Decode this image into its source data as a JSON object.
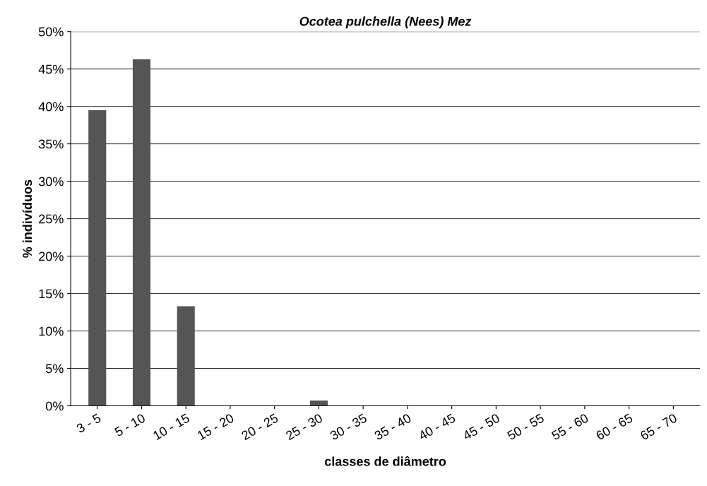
{
  "chart_data": {
    "type": "bar",
    "title": "Ocotea pulchella (Nees) Mez",
    "xlabel": "classes de diâmetro",
    "ylabel": "% indivíduos",
    "categories": [
      "3 - 5",
      "5 - 10",
      "10 - 15",
      "15 - 20",
      "20 - 25",
      "25 - 30",
      "30 - 35",
      "35 - 40",
      "40 - 45",
      "45 - 50",
      "50 - 55",
      "55 - 60",
      "60 - 65",
      "65 - 70"
    ],
    "values": [
      39.5,
      46.3,
      13.3,
      0,
      0,
      0.7,
      0,
      0,
      0,
      0,
      0,
      0,
      0,
      0
    ],
    "color": "#555555",
    "ylim": [
      0,
      50
    ],
    "yticks": [
      {
        "value": 0,
        "label": "0%"
      },
      {
        "value": 5,
        "label": "5%"
      },
      {
        "value": 10,
        "label": "10%"
      },
      {
        "value": 15,
        "label": "15%"
      },
      {
        "value": 20,
        "label": "20%"
      },
      {
        "value": 25,
        "label": "25%"
      },
      {
        "value": 30,
        "label": "30%"
      },
      {
        "value": 35,
        "label": "35%"
      },
      {
        "value": 40,
        "label": "40%"
      },
      {
        "value": 45,
        "label": "45%"
      },
      {
        "value": 50,
        "label": "50%"
      }
    ],
    "grid": "y"
  }
}
